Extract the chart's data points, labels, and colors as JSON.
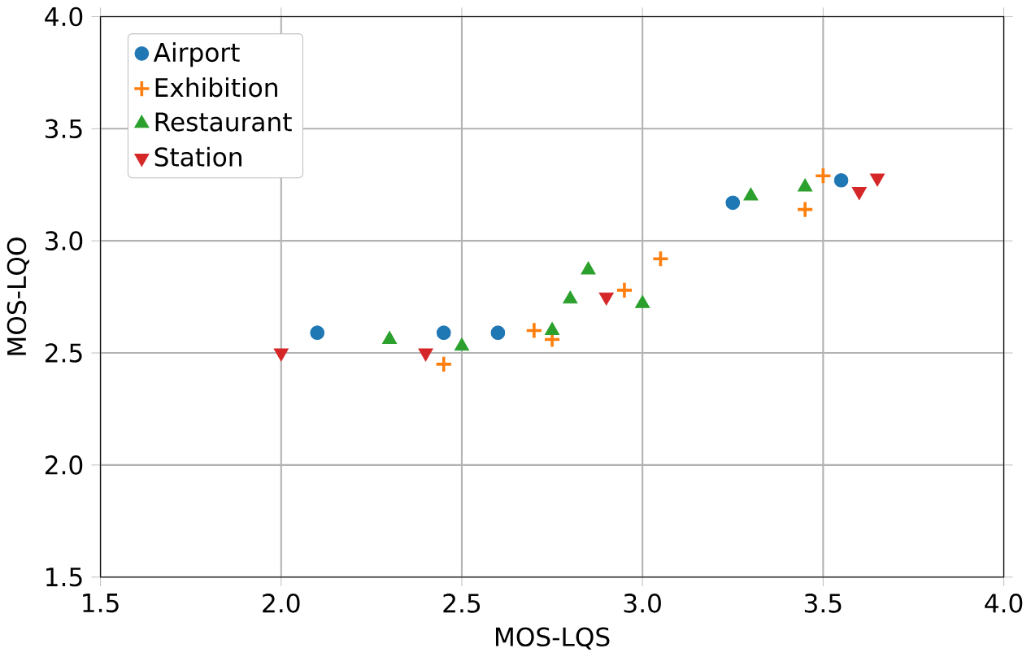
{
  "chart_data": {
    "type": "scatter",
    "xlabel": "MOS-LQS",
    "ylabel": "MOS-LQO",
    "xlim": [
      1.5,
      4.0
    ],
    "ylim": [
      1.5,
      4.0
    ],
    "xticks": [
      {
        "value": 1.5,
        "label": "1.5"
      },
      {
        "value": 2.0,
        "label": "2.0"
      },
      {
        "value": 2.5,
        "label": "2.5"
      },
      {
        "value": 3.0,
        "label": "3.0"
      },
      {
        "value": 3.5,
        "label": "3.5"
      },
      {
        "value": 4.0,
        "label": "4.0"
      }
    ],
    "yticks": [
      {
        "value": 1.5,
        "label": "1.5"
      },
      {
        "value": 2.0,
        "label": "2.0"
      },
      {
        "value": 2.5,
        "label": "2.5"
      },
      {
        "value": 3.0,
        "label": "3.0"
      },
      {
        "value": 3.5,
        "label": "3.5"
      },
      {
        "value": 4.0,
        "label": "4.0"
      }
    ],
    "grid": true,
    "legend": "top left",
    "series": [
      {
        "name": "Airport",
        "color": "#1f77b4",
        "marker": "circle",
        "x": [
          2.1,
          2.45,
          2.6,
          3.25,
          3.55
        ],
        "values": [
          2.59,
          2.59,
          2.59,
          3.17,
          3.27
        ]
      },
      {
        "name": "Exhibition",
        "color": "#ff7f0e",
        "marker": "cross",
        "x": [
          2.45,
          2.7,
          2.75,
          2.95,
          3.05,
          3.45,
          3.5
        ],
        "values": [
          2.45,
          2.6,
          2.56,
          2.78,
          2.92,
          3.14,
          3.29
        ]
      },
      {
        "name": "Restaurant",
        "color": "#2ca02c",
        "marker": "triangle",
        "x": [
          2.3,
          2.5,
          2.75,
          2.8,
          2.85,
          3.0,
          3.3,
          3.45
        ],
        "values": [
          2.56,
          2.53,
          2.6,
          2.74,
          2.87,
          2.72,
          3.2,
          3.24
        ]
      },
      {
        "name": "Station",
        "color": "#d62728",
        "marker": "triangle-down",
        "x": [
          2.0,
          2.4,
          2.9,
          3.6,
          3.65
        ],
        "values": [
          2.5,
          2.5,
          2.75,
          3.22,
          3.28
        ]
      }
    ]
  }
}
